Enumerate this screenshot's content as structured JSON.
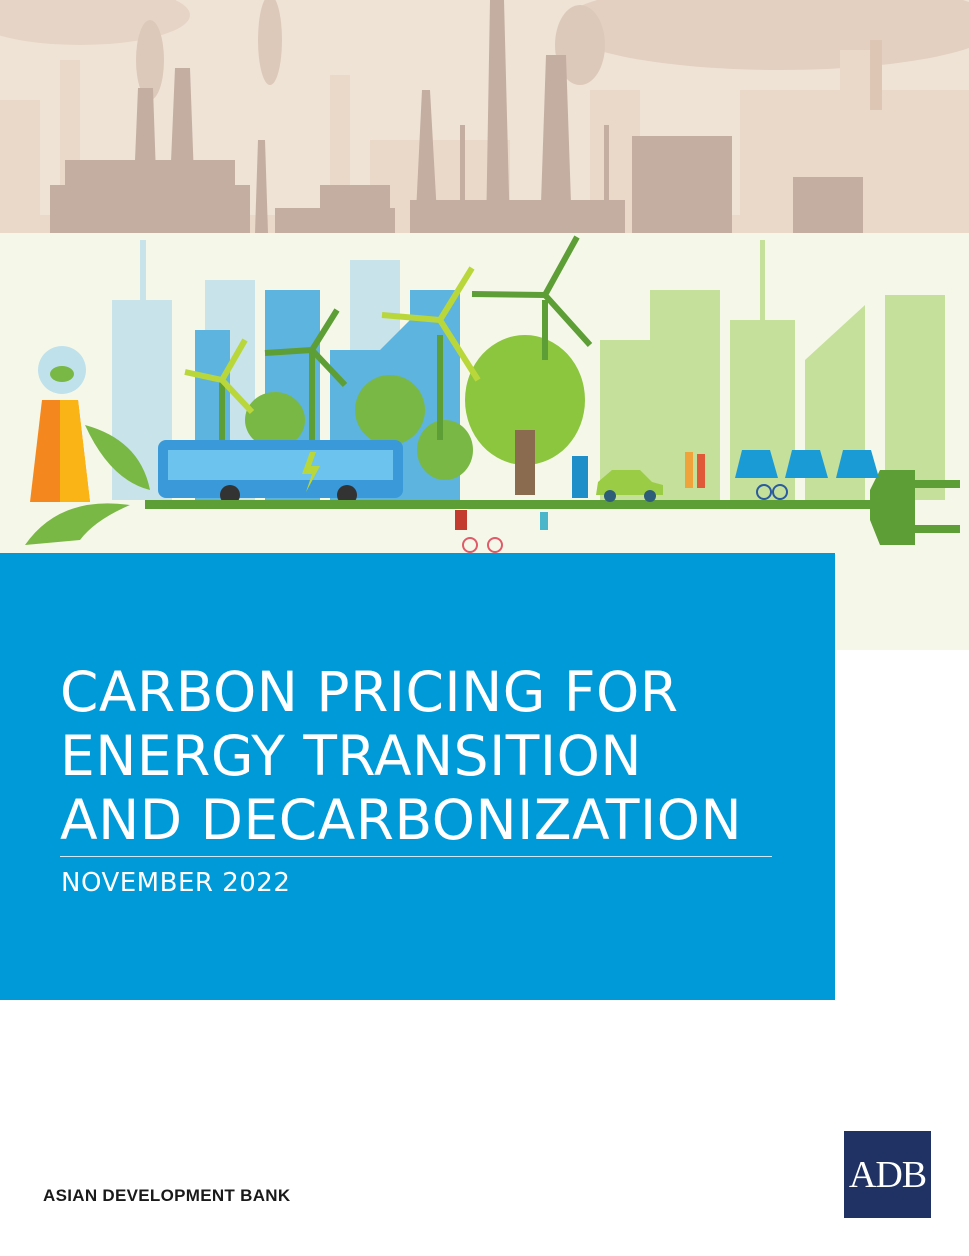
{
  "cover": {
    "title_lines": [
      "CARBON PRICING FOR",
      "ENERGY TRANSITION",
      "AND DECARBONIZATION"
    ],
    "date": "NOVEMBER 2022",
    "publisher": "ASIAN DEVELOPMENT BANK",
    "logo_text": "ADB"
  },
  "colors": {
    "title_panel": "#009ad9",
    "logo_bg": "#1f3263",
    "smog_bg": "#efe3d6",
    "factory": "#c4aea2",
    "city_bg": "#f5f8e8",
    "green": "#5e9e36",
    "light_green": "#c5e09a",
    "city_blue": "#5db4df"
  },
  "illustration": {
    "top": "polluting factories with smoke",
    "bottom": "green city with wind turbines, electric bus, trees, solar panels, electric car, cyclists and power plug"
  }
}
